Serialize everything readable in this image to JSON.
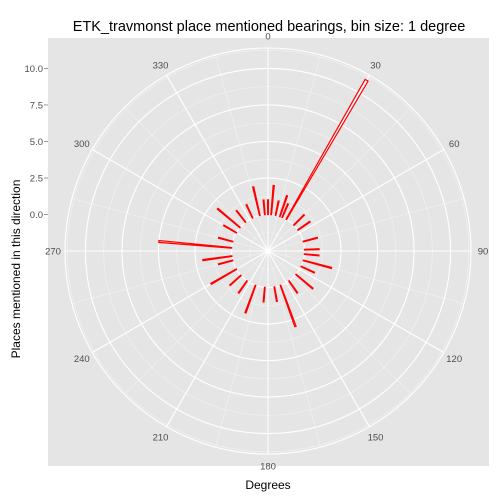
{
  "chart_data": {
    "type": "polar-bar",
    "title": "ETK_travmonst place mentioned bearings, bin size: 1 degree",
    "xlabel": "Degrees",
    "ylabel": "Places mentioned in this direction",
    "angle_ticks": [
      "0",
      "30",
      "60",
      "90",
      "120",
      "150",
      "180",
      "210",
      "240",
      "270",
      "300",
      "330"
    ],
    "radial_ticks": [
      "0.0",
      "2.5",
      "5.0",
      "7.5",
      "10.0"
    ],
    "radial_tick_values": [
      0,
      2.5,
      5,
      7.5,
      10
    ],
    "rlim": [
      -2.5,
      11.4
    ],
    "colors": {
      "panel": "#e5e5e5",
      "grid": "#ffffff",
      "bars": "#ff0000"
    },
    "bin_size_degrees": 1,
    "bars": [
      {
        "deg": 0,
        "value": 1
      },
      {
        "deg": 5,
        "value": 2
      },
      {
        "deg": 12,
        "value": 1
      },
      {
        "deg": 19,
        "value": 1.5
      },
      {
        "deg": 23,
        "value": 1
      },
      {
        "deg": 30,
        "value": 11
      },
      {
        "deg": 45,
        "value": 1
      },
      {
        "deg": 55,
        "value": 1
      },
      {
        "deg": 75,
        "value": 1
      },
      {
        "deg": 88,
        "value": 1
      },
      {
        "deg": 95,
        "value": 1
      },
      {
        "deg": 105,
        "value": 2
      },
      {
        "deg": 115,
        "value": 1
      },
      {
        "deg": 130,
        "value": 1.5
      },
      {
        "deg": 145,
        "value": 1
      },
      {
        "deg": 160,
        "value": 3
      },
      {
        "deg": 170,
        "value": 1
      },
      {
        "deg": 185,
        "value": 1
      },
      {
        "deg": 200,
        "value": 2
      },
      {
        "deg": 215,
        "value": 1
      },
      {
        "deg": 228,
        "value": 1
      },
      {
        "deg": 240,
        "value": 2
      },
      {
        "deg": 255,
        "value": 1
      },
      {
        "deg": 262,
        "value": 2
      },
      {
        "deg": 275,
        "value": 5
      },
      {
        "deg": 285,
        "value": 1
      },
      {
        "deg": 300,
        "value": 1
      },
      {
        "deg": 310,
        "value": 2
      },
      {
        "deg": 322,
        "value": 1
      },
      {
        "deg": 335,
        "value": 1
      },
      {
        "deg": 347,
        "value": 2
      },
      {
        "deg": 355,
        "value": 1
      }
    ]
  }
}
